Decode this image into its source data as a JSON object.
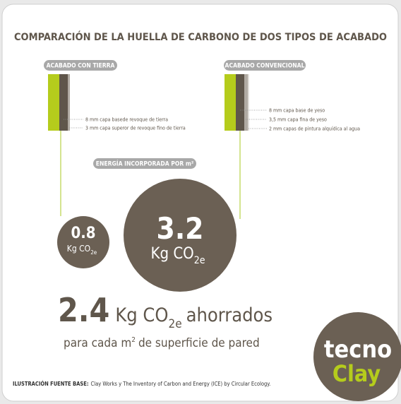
{
  "title": "COMPARACIÓN DE LA HUELLA DE CARBONO DE DOS TIPOS DE ACABADO",
  "panels": [
    {
      "label": "ACABADO CON TIERRA",
      "layers": [
        "8 mm capa basede revoque de tierra",
        "3 mm capa superor de revoque fino de tierra"
      ]
    },
    {
      "label": "ACABADO CONVENCIONAL",
      "layers": [
        "8 mm capa base de yeso",
        "3,5 mm capa fina de yeso",
        "2 mm capas de pintura alquídica al agua"
      ]
    }
  ],
  "energy_label": "ENERGÍA INCORPORADA POR m²",
  "circles": [
    {
      "value": "0.8",
      "unit": "Kg CO",
      "sub": "2e"
    },
    {
      "value": "3.2",
      "unit": "Kg CO",
      "sub": "2e"
    }
  ],
  "savings": {
    "value": "2.4",
    "unit": "Kg CO",
    "sub": "2e",
    "suffix": "ahorrados"
  },
  "per": {
    "text": "para cada m",
    "sup": "2",
    "rest": "de superficie de pared"
  },
  "logo": {
    "line1": "tecno",
    "line2": "Clay"
  },
  "source": {
    "label": "ILUSTRACIÓN FUENTE BASE:",
    "text": "Clay Works y The Inventory of Carbon and Energy (ICE) by Circular Ecology."
  }
}
